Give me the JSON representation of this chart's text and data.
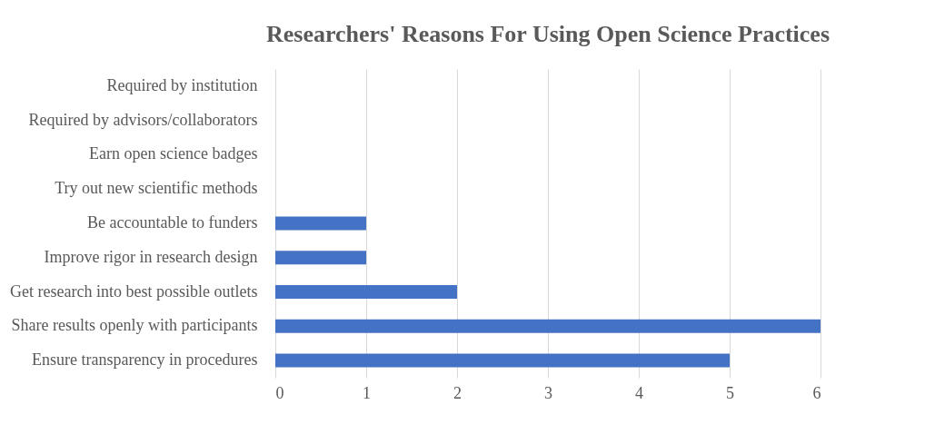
{
  "chart_data": {
    "type": "bar",
    "orientation": "horizontal",
    "title": "Researchers' Reasons For Using Open Science Practices",
    "categories": [
      "Required by institution",
      "Required by advisors/collaborators",
      "Earn open science badges",
      "Try out new scientific methods",
      "Be accountable to funders",
      "Improve rigor in research design",
      "Get research into best possible outlets",
      "Share results openly with participants",
      "Ensure transparency in procedures"
    ],
    "values": [
      0,
      0,
      0,
      0,
      1,
      1,
      2,
      6,
      5
    ],
    "color": "#4472c4",
    "xlim": [
      0,
      6
    ],
    "xticks": [
      0,
      1,
      2,
      3,
      4,
      5,
      6
    ],
    "grid": "x"
  }
}
